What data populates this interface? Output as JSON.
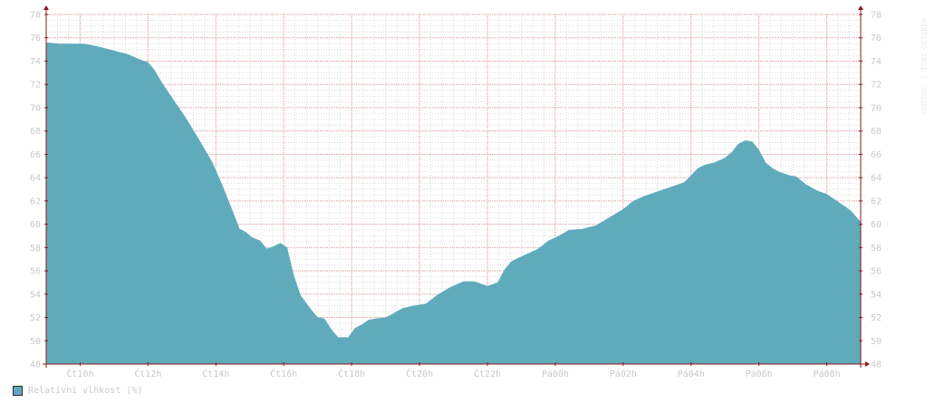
{
  "colors": {
    "area": "#5fabbc",
    "grid_major": "#e8a0a0",
    "grid_minor": "#dcdcdc",
    "axis": "#8b1a1a",
    "tick_text": "#c9c9c9"
  },
  "watermark": "RRDTOOL / TOBI OETIKER",
  "chart_data": {
    "type": "area",
    "series": [
      {
        "name": "Relativni vlhkost (%)",
        "x_hours": [
          9.0,
          9.4,
          9.8,
          10.1,
          10.3,
          10.6,
          11.0,
          11.4,
          11.8,
          12.0,
          12.2,
          12.4,
          12.7,
          13.1,
          13.5,
          13.9,
          14.2,
          14.5,
          14.7,
          14.9,
          15.05,
          15.3,
          15.5,
          15.7,
          15.9,
          16.1,
          16.3,
          16.5,
          16.8,
          17.0,
          17.2,
          17.4,
          17.6,
          17.7,
          17.9,
          18.1,
          18.3,
          18.5,
          18.7,
          19.0,
          19.2,
          19.5,
          19.8,
          20.2,
          20.5,
          20.9,
          21.3,
          21.6,
          22.0,
          22.3,
          22.5,
          22.7,
          22.9,
          23.2,
          23.5,
          23.8,
          24.1,
          24.4,
          24.8,
          25.2,
          25.6,
          26.0,
          26.3,
          26.6,
          26.9,
          27.2,
          27.6,
          27.8,
          28.0,
          28.2,
          28.4,
          28.7,
          29.0,
          29.2,
          29.4,
          29.6,
          29.8,
          30.0,
          30.2,
          30.4,
          30.6,
          30.9,
          31.1,
          31.4,
          31.7,
          32.0,
          32.3,
          32.7,
          33.0
        ],
        "values": [
          75.6,
          75.5,
          75.5,
          75.5,
          75.4,
          75.2,
          74.9,
          74.6,
          74.1,
          73.9,
          73.2,
          72.2,
          70.9,
          69.2,
          67.3,
          65.3,
          63.3,
          61.1,
          59.6,
          59.3,
          58.9,
          58.6,
          57.9,
          58.1,
          58.4,
          58.0,
          55.6,
          53.9,
          52.7,
          52.0,
          51.9,
          51.0,
          50.3,
          50.3,
          50.3,
          51.1,
          51.4,
          51.8,
          51.9,
          52.0,
          52.3,
          52.8,
          53.0,
          53.2,
          53.9,
          54.6,
          55.1,
          55.1,
          54.7,
          55.0,
          56.1,
          56.8,
          57.1,
          57.5,
          57.9,
          58.6,
          59.0,
          59.5,
          59.6,
          59.9,
          60.6,
          61.3,
          62.0,
          62.4,
          62.7,
          63.0,
          63.4,
          63.6,
          64.2,
          64.8,
          65.1,
          65.3,
          65.7,
          66.2,
          66.9,
          67.2,
          67.1,
          66.4,
          65.3,
          64.8,
          64.5,
          64.2,
          64.1,
          63.4,
          62.9,
          62.6,
          62.0,
          61.2,
          60.2
        ]
      }
    ],
    "x_range_hours": [
      9.0,
      33.0
    ],
    "x_ticks": [
      {
        "hour": 10,
        "label": "Čt10h"
      },
      {
        "hour": 12,
        "label": "Čt12h"
      },
      {
        "hour": 14,
        "label": "Čt14h"
      },
      {
        "hour": 16,
        "label": "Čt16h"
      },
      {
        "hour": 18,
        "label": "Čt18h"
      },
      {
        "hour": 20,
        "label": "Čt20h"
      },
      {
        "hour": 22,
        "label": "Čt22h"
      },
      {
        "hour": 24,
        "label": "Pá00h"
      },
      {
        "hour": 26,
        "label": "Pá02h"
      },
      {
        "hour": 28,
        "label": "Pá04h"
      },
      {
        "hour": 30,
        "label": "Pá06h"
      },
      {
        "hour": 32,
        "label": "Pá08h"
      }
    ],
    "ylim": [
      48,
      78
    ],
    "y_ticks": [
      48,
      50,
      52,
      54,
      56,
      58,
      60,
      62,
      64,
      66,
      68,
      70,
      72,
      74,
      76,
      78
    ],
    "grid": true,
    "legend_position": "bottom-left"
  }
}
